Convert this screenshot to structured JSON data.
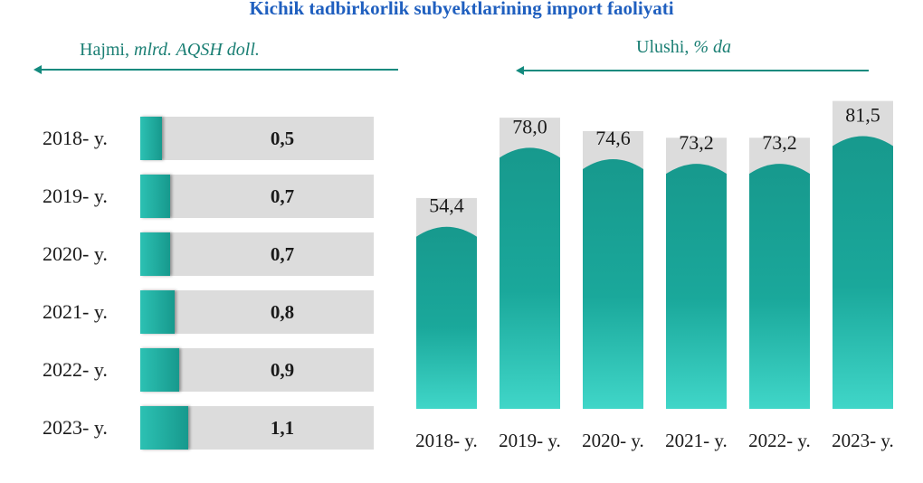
{
  "title": "Kichik tadbirkorlik subyektlarining import faoliyati",
  "left_label": {
    "main": "Hajmi, ",
    "unit": "mlrd. AQSH doll."
  },
  "right_label": {
    "main": "Ulushi, ",
    "unit": "% da"
  },
  "colors": {
    "title": "#1f5fbf",
    "teal": "#17998d",
    "teal_light": "#3fd2c4",
    "track": "#dcdcdc"
  },
  "chart_data": [
    {
      "type": "bar",
      "orientation": "horizontal",
      "categories": [
        "2018- y.",
        "2019- y.",
        "2020- y.",
        "2021- y.",
        "2022- y.",
        "2023- y."
      ],
      "values": [
        0.5,
        0.7,
        0.7,
        0.8,
        0.9,
        1.1
      ],
      "value_labels": [
        "0,5",
        "0,7",
        "0,7",
        "0,8",
        "0,9",
        "1,1"
      ],
      "xlim": [
        0,
        10
      ]
    },
    {
      "type": "bar",
      "orientation": "vertical",
      "categories": [
        "2018- y.",
        "2019- y.",
        "2020- y.",
        "2021- y.",
        "2022- y.",
        "2023- y."
      ],
      "values": [
        54.4,
        78.0,
        74.6,
        73.2,
        73.2,
        81.5
      ],
      "value_labels": [
        "54,4",
        "78,0",
        "74,6",
        "73,2",
        "73,2",
        "81,5"
      ],
      "background_values": [
        63,
        87,
        83,
        81,
        81,
        92
      ],
      "ylim": [
        0,
        100
      ]
    }
  ]
}
